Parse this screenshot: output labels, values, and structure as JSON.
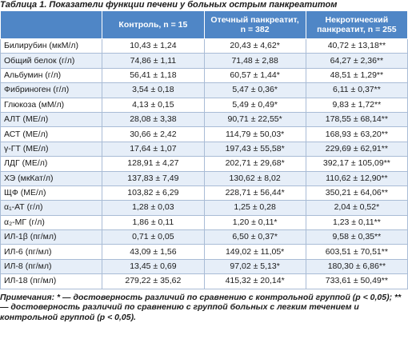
{
  "title": "Таблица 1. Показатели функции печени у больных острым панкреатитом",
  "table": {
    "header": [
      "Контроль, n = 15",
      "Отечный панкреатит, n = 382",
      "Некротический панкреатит, n = 255"
    ],
    "rows": [
      [
        "Билирубин (мкМ/л)",
        "10,43 ± 1,24",
        "20,43 ± 4,62*",
        "40,72 ± 13,18**"
      ],
      [
        "Общий белок (г/л)",
        "74,86 ± 1,11",
        "71,48 ± 2,88",
        "64,27 ± 2,36**"
      ],
      [
        "Альбумин (г/л)",
        "56,41 ± 1,18",
        "60,57 ± 1,44*",
        "48,51 ± 1,29**"
      ],
      [
        "Фибриноген (г/л)",
        "3,54 ± 0,18",
        "5,47 ± 0,36*",
        "6,11 ± 0,37**"
      ],
      [
        "Глюкоза (мМ/л)",
        "4,13 ± 0,15",
        "5,49 ± 0,49*",
        "9,83 ± 1,72**"
      ],
      [
        "АЛТ (МЕ/л)",
        "28,08 ± 3,38",
        "90,71 ± 22,55*",
        "178,55 ± 68,14**"
      ],
      [
        "АСТ (МЕ/л)",
        "30,66 ± 2,42",
        "114,79 ± 50,03*",
        "168,93 ± 63,20**"
      ],
      [
        "γ-ГТ (МЕ/л)",
        "17,64 ± 1,07",
        "197,43 ± 55,58*",
        "229,69 ± 62,91**"
      ],
      [
        "ЛДГ (МЕ/л)",
        "128,91 ± 4,27",
        "202,71 ± 29,68*",
        "392,17 ± 105,09**"
      ],
      [
        "ХЭ (мкКат/л)",
        "137,83 ± 7,49",
        "130,62 ± 8,02",
        "110,62 ± 12,90**"
      ],
      [
        "ЩФ (МЕ/л)",
        "103,82 ± 6,29",
        "228,71 ± 56,44*",
        "350,21 ± 64,06**"
      ],
      [
        "α₁-АТ (г/л)",
        "1,28 ± 0,03",
        "1,25 ± 0,28",
        "2,04 ± 0,52*"
      ],
      [
        "α₂-МГ (г/л)",
        "1,86 ± 0,11",
        "1,20 ± 0,11*",
        "1,23 ± 0,11**"
      ],
      [
        "ИЛ-1β (пг/мл)",
        "0,71 ± 0,05",
        "6,50 ± 0,37*",
        "9,58 ± 0,35**"
      ],
      [
        "ИЛ-6 (пг/мл)",
        "43,09 ± 1,56",
        "149,02 ± 11,05*",
        "603,51 ± 70,51**"
      ],
      [
        "ИЛ-8 (пг/мл)",
        "13,45 ± 0,69",
        "97,02 ± 5,13*",
        "180,30 ± 6,86**"
      ],
      [
        "ИЛ-18 (пг/мл)",
        "279,22 ± 35,62",
        "415,32 ± 20,14*",
        "733,61 ± 50,49**"
      ]
    ]
  },
  "note": "Примечания: * — достоверность различий по сравнению с контрольной группой (p < 0,05); ** — достоверность различий по сравнению с группой больных с легким течением и контрольной группой (p < 0,05)."
}
